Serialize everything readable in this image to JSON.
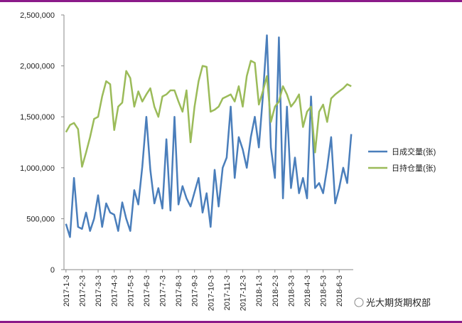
{
  "chart_data": {
    "type": "line",
    "categories": [
      "2017-1-3",
      null,
      null,
      null,
      "2017-2-3",
      null,
      null,
      null,
      "2017-3-3",
      null,
      null,
      null,
      "2017-4-3",
      null,
      null,
      null,
      "2017-5-3",
      null,
      null,
      null,
      "2017-6-3",
      null,
      null,
      null,
      "2017-7-3",
      null,
      null,
      null,
      "2017-8-3",
      null,
      null,
      null,
      "2017-9-3",
      null,
      null,
      null,
      "2017-10-3",
      null,
      null,
      null,
      "2017-11-3",
      null,
      null,
      null,
      "2017-12-3",
      null,
      null,
      null,
      "2018-1-3",
      null,
      null,
      null,
      "2018-2-3",
      null,
      null,
      null,
      "2018-3-3",
      null,
      null,
      null,
      "2018-4-3",
      null,
      null,
      null,
      "2018-5-3",
      null,
      null,
      null,
      "2018-6-3",
      null,
      null,
      null
    ],
    "series": [
      {
        "name": "日成交量(张)",
        "color": "#4a7ebb",
        "values": [
          450000,
          320000,
          900000,
          420000,
          400000,
          560000,
          380000,
          500000,
          730000,
          420000,
          650000,
          560000,
          540000,
          380000,
          660000,
          500000,
          380000,
          780000,
          640000,
          1010000,
          1500000,
          980000,
          650000,
          800000,
          600000,
          1280000,
          580000,
          1500000,
          640000,
          820000,
          700000,
          620000,
          760000,
          900000,
          560000,
          750000,
          420000,
          980000,
          620000,
          1000000,
          1100000,
          1600000,
          900000,
          1300000,
          1180000,
          1000000,
          1300000,
          1500000,
          1200000,
          1700000,
          2300000,
          1200000,
          900000,
          2280000,
          700000,
          1600000,
          800000,
          1100000,
          750000,
          900000,
          700000,
          1700000,
          800000,
          850000,
          750000,
          1000000,
          1300000,
          650000,
          800000,
          1000000,
          850000,
          1330000
        ]
      },
      {
        "name": "日持仓量(张)",
        "color": "#9bbb59",
        "values": [
          1350000,
          1420000,
          1440000,
          1380000,
          1010000,
          1150000,
          1300000,
          1480000,
          1500000,
          1700000,
          1850000,
          1820000,
          1370000,
          1600000,
          1640000,
          1950000,
          1880000,
          1600000,
          1750000,
          1650000,
          1720000,
          1780000,
          1600000,
          1500000,
          1700000,
          1720000,
          1760000,
          1760000,
          1650000,
          1550000,
          1760000,
          1250000,
          1600000,
          1850000,
          2000000,
          1990000,
          1550000,
          1570000,
          1600000,
          1680000,
          1700000,
          1720000,
          1650000,
          1800000,
          1600000,
          1900000,
          2050000,
          2030000,
          1620000,
          1750000,
          1900000,
          1450000,
          1600000,
          1650000,
          1800000,
          1720000,
          1600000,
          1650000,
          1720000,
          1400000,
          1550000,
          1600000,
          1150000,
          1550000,
          1620000,
          1450000,
          1680000,
          1720000,
          1750000,
          1780000,
          1820000,
          1800000
        ]
      }
    ],
    "ylim": [
      0,
      2500000
    ],
    "yticks": [
      0,
      {
        "value": 500000,
        "label": "500,000"
      },
      {
        "value": 1000000,
        "label": "1,000,000"
      },
      {
        "value": 1500000,
        "label": "1,500,000"
      },
      {
        "value": 2000000,
        "label": "2,000,000"
      },
      {
        "value": 2500000,
        "label": "2,500,000"
      }
    ],
    "watermark": "光大期货期权部"
  }
}
